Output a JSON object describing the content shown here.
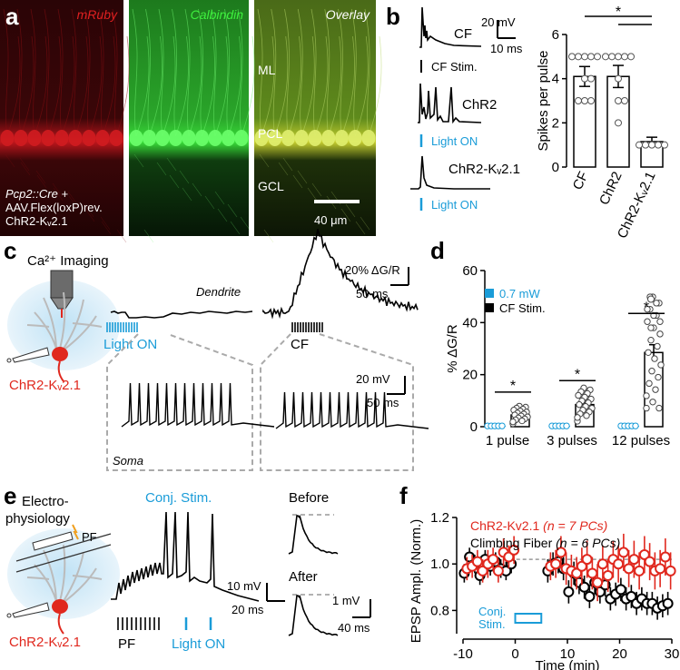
{
  "panel_letters": [
    "a",
    "b",
    "c",
    "d",
    "e",
    "f"
  ],
  "panel_a": {
    "image_titles": [
      "mRuby",
      "Calbindin",
      "Overlay"
    ],
    "genotype_lines": [
      "Pcp2::Cre +",
      "AAV.Flex(loxP)rev.",
      "ChR2-Kᵥ2.1"
    ],
    "layer_labels": [
      "ML",
      "PCL",
      "GCL"
    ],
    "scale_bar": "40 μm",
    "colors": {
      "mruby": "#c4141c",
      "calbindin": "#2fd02f"
    }
  },
  "panel_b": {
    "trace_labels": [
      "CF",
      "ChR2",
      "ChR2-Kᵥ2.1"
    ],
    "stim_labels": [
      "CF Stim.",
      "Light ON",
      "Light ON"
    ],
    "scale": {
      "v": "20 mV",
      "t": "10 ms"
    },
    "significance": "*",
    "chart_data": {
      "type": "bar",
      "categories": [
        "CF",
        "ChR2",
        "ChR2-Kᵥ2.1"
      ],
      "values": [
        4.1,
        4.1,
        1.15
      ],
      "errors": [
        0.45,
        0.5,
        0.2
      ],
      "points": [
        [
          5,
          5,
          5,
          5,
          5,
          4,
          4,
          3,
          3,
          3
        ],
        [
          5,
          5,
          5,
          5,
          5,
          4,
          3,
          3,
          2
        ],
        [
          1,
          1,
          1,
          1,
          1
        ]
      ],
      "ylabel": "Spikes per pulse",
      "ylim": [
        0,
        6
      ],
      "yticks": [
        "0",
        "2",
        "4",
        "6"
      ]
    }
  },
  "panel_c": {
    "title_lines": [
      "Ca²⁺ Imaging"
    ],
    "construct": "ChR2-Kᵥ2.1",
    "dendrite_label": "Dendrite",
    "soma_label": "Soma",
    "stim_labels": [
      "Light ON",
      "CF"
    ],
    "scale_top": {
      "y": "20% ΔG/R",
      "t": "50 ms"
    },
    "scale_bottom": {
      "v": "20 mV",
      "t": "50 ms"
    }
  },
  "panel_d": {
    "chart_data": {
      "type": "bar",
      "categories": [
        "1 pulse",
        "3 pulses",
        "12 pulses"
      ],
      "series": [
        {
          "name": "0.7 mW",
          "color": "#1a9cd8",
          "values": [
            0.3,
            0.3,
            0.3
          ]
        },
        {
          "name": "CF Stim.",
          "color": "#000000",
          "values": [
            4.5,
            8.5,
            28.5
          ]
        }
      ],
      "errors": [
        0.8,
        1.2,
        3.0
      ],
      "ylabel": "% ΔG/R",
      "ylim": [
        0,
        60
      ],
      "yticks": [
        "0",
        "20",
        "40",
        "60"
      ],
      "significance": [
        "*",
        "*",
        "*"
      ]
    }
  },
  "panel_e": {
    "title_lines": [
      "Electro-",
      "physiology"
    ],
    "pf_label": "PF",
    "construct": "ChR2-Kᵥ2.1",
    "conj_label": "Conj. Stim.",
    "stim_labels": [
      "PF",
      "Light ON"
    ],
    "scale_left": {
      "v": "10 mV",
      "t": "20 ms"
    },
    "before_label": "Before",
    "after_label": "After",
    "scale_right": {
      "v": "1 mV",
      "t": "40 ms"
    }
  },
  "panel_f": {
    "chart_data": {
      "type": "scatter",
      "series": [
        {
          "name": "ChR2-Kv2.1",
          "n_text": "(n = 7 PCs)",
          "color": "#e0281e",
          "x": [
            -9.5,
            -8.5,
            -7.5,
            -6.5,
            -5.5,
            -4.5,
            -3.5,
            -2.5,
            -1.5,
            -0.5,
            6.5,
            7.5,
            8.5,
            9.5,
            10.5,
            11.5,
            12.5,
            13.5,
            14.5,
            15.5,
            16.5,
            17.5,
            18.5,
            19.5,
            20.5,
            21.5,
            22.5,
            23.5,
            24.5,
            25.5,
            26.5,
            27.5,
            28.5,
            29.5
          ],
          "y": [
            0.98,
            0.99,
            1.01,
            0.97,
            1.0,
            1.02,
            0.97,
            1.05,
            1.03,
            1.06,
            0.99,
            1.0,
            1.05,
            0.98,
            0.97,
            0.96,
            0.99,
            1.02,
            0.96,
            0.92,
            1.0,
            0.95,
            1.02,
            1.0,
            1.05,
            0.98,
            1.02,
            0.97,
            1.04,
            1.01,
            0.97,
            0.98,
            1.03,
            0.97
          ],
          "err": [
            0.05,
            0.05,
            0.05,
            0.05,
            0.06,
            0.05,
            0.05,
            0.06,
            0.05,
            0.06,
            0.06,
            0.06,
            0.07,
            0.07,
            0.07,
            0.07,
            0.08,
            0.08,
            0.07,
            0.08,
            0.08,
            0.07,
            0.08,
            0.08,
            0.08,
            0.08,
            0.08,
            0.08,
            0.08,
            0.08,
            0.08,
            0.08,
            0.08,
            0.08
          ]
        },
        {
          "name": "Climbing Fiber",
          "n_text": "(n = 6  PCs)",
          "color": "#000000",
          "x": [
            -9.5,
            -8.5,
            -7.5,
            -6.5,
            -5.5,
            -4.5,
            -3.5,
            -2.5,
            -1.5,
            -0.5,
            6.5,
            7.5,
            8.5,
            9.5,
            10.5,
            11.5,
            12.5,
            13.5,
            14.5,
            15.5,
            16.5,
            17.5,
            18.5,
            19.5,
            20.5,
            21.5,
            22.5,
            23.5,
            24.5,
            25.5,
            26.5,
            27.5,
            28.5,
            29.5
          ],
          "y": [
            0.96,
            1.03,
            1.0,
            0.95,
            1.02,
            0.99,
            1.01,
            0.98,
            0.97,
            1.0,
            0.97,
            1.0,
            1.01,
            0.98,
            0.88,
            0.96,
            0.92,
            0.9,
            0.86,
            0.92,
            0.88,
            0.91,
            0.85,
            0.87,
            0.89,
            0.85,
            0.86,
            0.83,
            0.85,
            0.83,
            0.83,
            0.81,
            0.82,
            0.83
          ],
          "err": [
            0.04,
            0.04,
            0.04,
            0.04,
            0.04,
            0.04,
            0.04,
            0.04,
            0.04,
            0.04,
            0.05,
            0.05,
            0.05,
            0.05,
            0.05,
            0.05,
            0.05,
            0.05,
            0.05,
            0.05,
            0.05,
            0.05,
            0.05,
            0.05,
            0.05,
            0.05,
            0.05,
            0.05,
            0.05,
            0.05,
            0.05,
            0.05,
            0.05,
            0.05
          ]
        }
      ],
      "xlabel": "Time (min)",
      "ylabel": "EPSP Ampl. (Norm.)",
      "xlim": [
        -10,
        30
      ],
      "ylim": [
        0.7,
        1.2
      ],
      "xticks": [
        "-10",
        "0",
        "10",
        "20",
        "30"
      ],
      "yticks": [
        "0.8",
        "1.0",
        "1.2"
      ],
      "baseline": 1.02,
      "stim_box": {
        "label_lines": [
          "Conj.",
          "Stim."
        ],
        "start": 0,
        "end": 5
      }
    }
  }
}
